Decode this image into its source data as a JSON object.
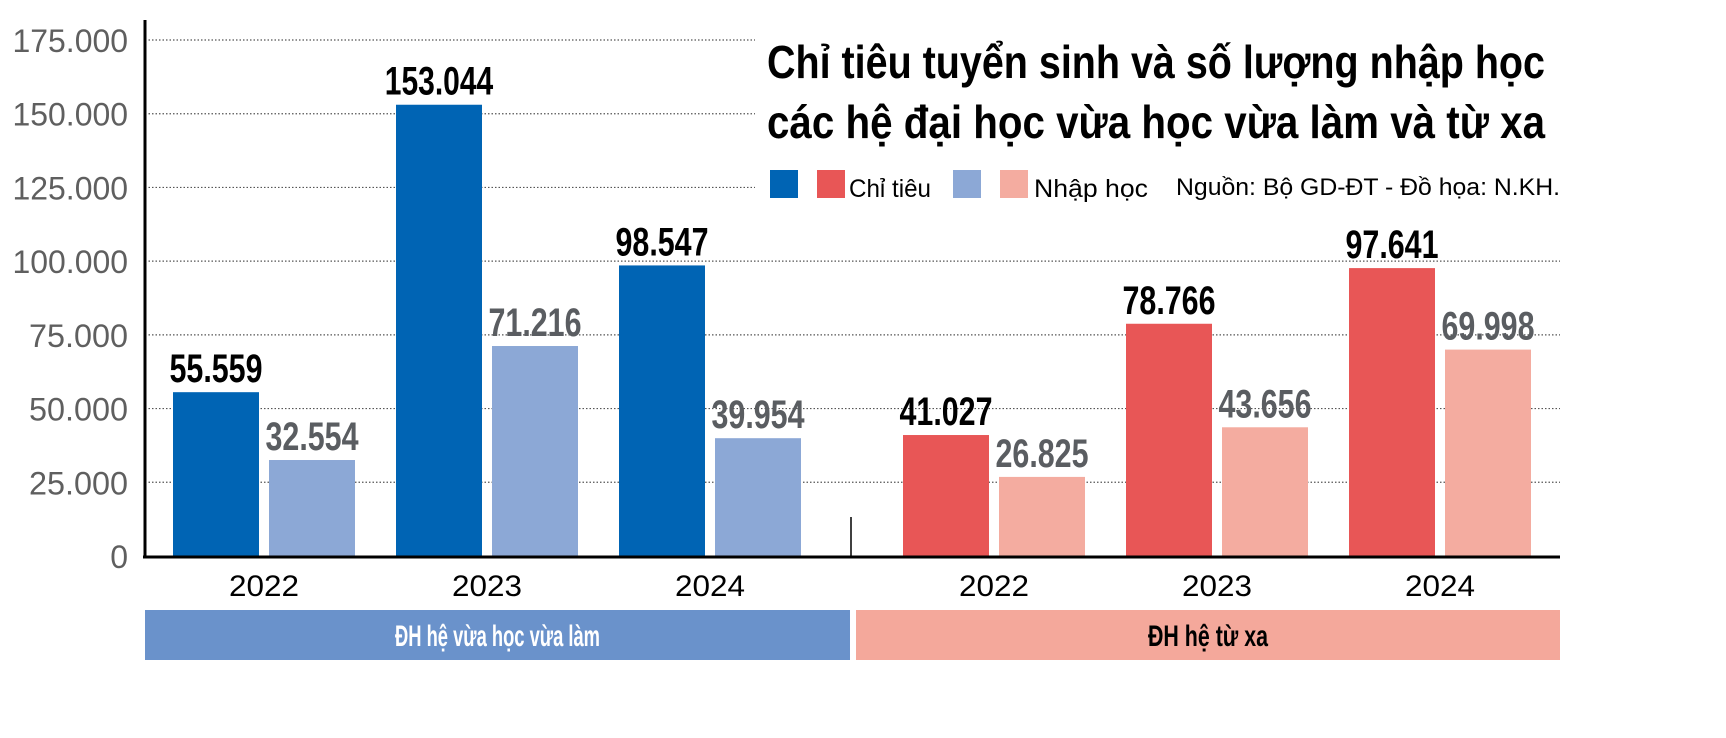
{
  "chart_data": {
    "type": "bar",
    "title_lines": [
      "Chỉ tiêu tuyển sinh và số lượng nhập học",
      "các hệ đại học vừa học vừa làm và từ xa"
    ],
    "source": "Nguồn: Bộ GD-ĐT - Đồ họa: N.KH.",
    "ylim": [
      0,
      175000
    ],
    "yticks": [
      {
        "value": 0,
        "label": "0"
      },
      {
        "value": 25000,
        "label": "25.000"
      },
      {
        "value": 50000,
        "label": "50.000"
      },
      {
        "value": 75000,
        "label": "75.000"
      },
      {
        "value": 100000,
        "label": "100.000"
      },
      {
        "value": 125000,
        "label": "125.000"
      },
      {
        "value": 150000,
        "label": "150.000"
      },
      {
        "value": 175000,
        "label": "175.000"
      }
    ],
    "grid": true,
    "legend": {
      "placement": "top-right",
      "entries": [
        {
          "label": "Chỉ tiêu",
          "colors": [
            "#0064b4",
            "#e85656"
          ]
        },
        {
          "label": "Nhập học",
          "colors": [
            "#8ca8d6",
            "#f4aca0"
          ]
        }
      ]
    },
    "groups": [
      {
        "name": "ĐH hệ vừa học vừa làm",
        "band_color": "#6a92cb",
        "categories": [
          "2022",
          "2023",
          "2024"
        ],
        "series": [
          {
            "name": "Chỉ tiêu",
            "color": "#0064b4",
            "values": [
              55559,
              153044,
              98547
            ],
            "labels": [
              "55.559",
              "153.044",
              "98.547"
            ]
          },
          {
            "name": "Nhập học",
            "color": "#8ca8d6",
            "values": [
              32554,
              71216,
              39954
            ],
            "labels": [
              "32.554",
              "71.216",
              "39.954"
            ]
          }
        ]
      },
      {
        "name": "ĐH hệ từ xa",
        "band_color": "#f4a89b",
        "categories": [
          "2022",
          "2023",
          "2024"
        ],
        "series": [
          {
            "name": "Chỉ tiêu",
            "color": "#e85656",
            "values": [
              41027,
              78766,
              97641
            ],
            "labels": [
              "41.027",
              "78.766",
              "97.641"
            ]
          },
          {
            "name": "Nhập học",
            "color": "#f4aca0",
            "values": [
              26825,
              43656,
              69998
            ],
            "labels": [
              "26.825",
              "43.656",
              "69.998"
            ]
          }
        ]
      }
    ]
  }
}
